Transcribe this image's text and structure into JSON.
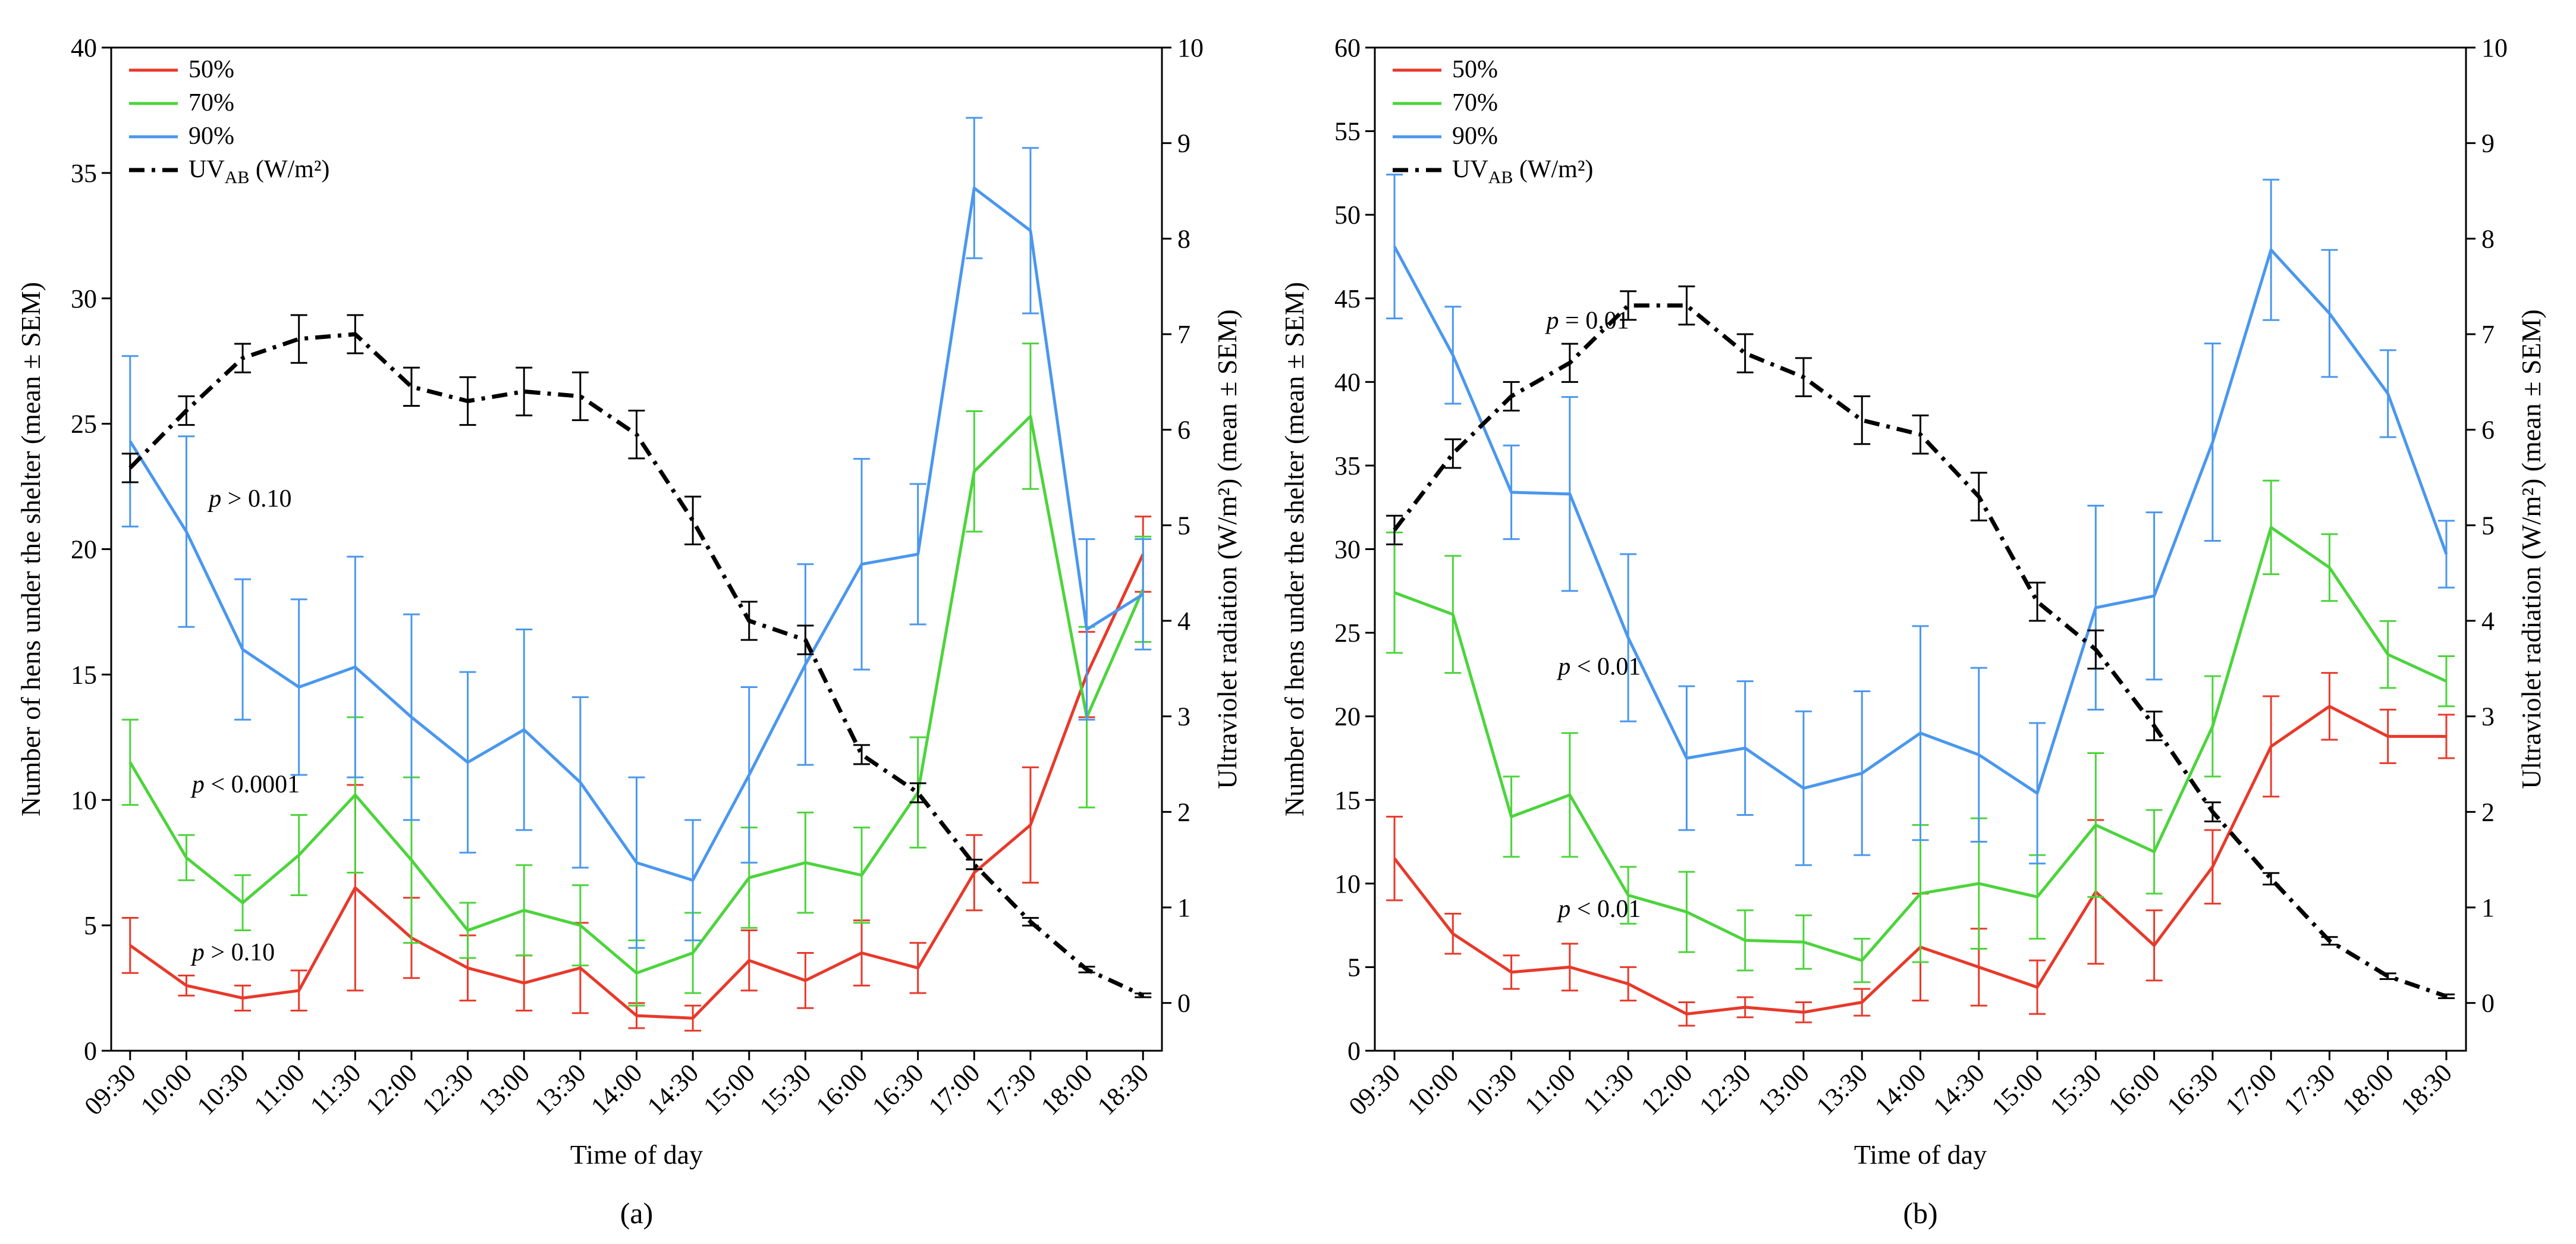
{
  "colors": {
    "s50": "#e8392a",
    "s70": "#4cd43c",
    "s90": "#4a97ee",
    "uv": "#000000"
  },
  "chart_data": [
    {
      "type": "line",
      "caption": "(a)",
      "xlabel": "Time of day",
      "ylabel": "Number of hens under the shelter (mean ± SEM)",
      "ylabel2": "Ultraviolet radiation (W/m²) (mean ± SEM)",
      "ylim": [
        0,
        40
      ],
      "yticks": [
        0,
        5,
        10,
        15,
        20,
        25,
        30,
        35,
        40
      ],
      "ylim2": [
        -0.5,
        10
      ],
      "yticks2": [
        0,
        1,
        2,
        3,
        4,
        5,
        6,
        7,
        8,
        9,
        10
      ],
      "categories": [
        "09:30",
        "10:00",
        "10:30",
        "11:00",
        "11:30",
        "12:00",
        "12:30",
        "13:00",
        "13:30",
        "14:00",
        "14:30",
        "15:00",
        "15:30",
        "16:00",
        "16:30",
        "17:00",
        "17:30",
        "18:00",
        "18:30"
      ],
      "legend": {
        "s50": "50%",
        "s70": "70%",
        "s90": "90%",
        "uv_main": "UV",
        "uv_sub": "AB",
        "uv_unit": " (W/m²)"
      },
      "annotations": [
        {
          "text": " > 0.10",
          "italic": "p",
          "x": 1.4,
          "y": 21.7
        },
        {
          "text": " < 0.0001",
          "italic": "p",
          "x": 1.1,
          "y": 10.3
        },
        {
          "text": " > 0.10",
          "italic": "p",
          "x": 1.1,
          "y": 3.6
        }
      ],
      "series": [
        {
          "name": "50%",
          "key": "s50",
          "values": [
            4.2,
            2.6,
            2.1,
            2.4,
            6.5,
            4.5,
            3.3,
            2.7,
            3.3,
            1.4,
            1.3,
            3.6,
            2.8,
            3.9,
            3.3,
            7.1,
            9.0,
            15.0,
            19.8
          ],
          "errors": [
            1.1,
            0.4,
            0.5,
            0.8,
            4.1,
            1.6,
            1.3,
            1.1,
            1.8,
            0.5,
            0.5,
            1.2,
            1.1,
            1.3,
            1.0,
            1.5,
            2.3,
            1.7,
            1.5
          ]
        },
        {
          "name": "70%",
          "key": "s70",
          "values": [
            11.5,
            7.7,
            5.9,
            7.8,
            10.2,
            7.6,
            4.8,
            5.6,
            5.0,
            3.1,
            3.9,
            6.9,
            7.5,
            7.0,
            10.3,
            23.1,
            25.3,
            13.3,
            18.4
          ],
          "errors": [
            1.7,
            0.9,
            1.1,
            1.6,
            3.1,
            3.3,
            1.1,
            1.8,
            1.6,
            1.3,
            1.6,
            2.0,
            2.0,
            1.9,
            2.2,
            2.4,
            2.9,
            3.6,
            2.1
          ]
        },
        {
          "name": "90%",
          "key": "s90",
          "values": [
            24.3,
            20.7,
            16.0,
            14.5,
            15.3,
            13.3,
            11.5,
            12.8,
            10.7,
            7.5,
            6.8,
            11.0,
            15.4,
            19.4,
            19.8,
            34.4,
            32.7,
            16.8,
            18.2
          ],
          "errors": [
            3.4,
            3.8,
            2.8,
            3.5,
            4.4,
            4.1,
            3.6,
            4.0,
            3.4,
            3.4,
            2.4,
            3.5,
            4.0,
            4.2,
            2.8,
            2.8,
            3.3,
            3.6,
            2.2
          ]
        },
        {
          "name": "UVAB (W/m²)",
          "key": "uv",
          "axis": "right",
          "values": [
            5.6,
            6.2,
            6.75,
            6.95,
            7.0,
            6.45,
            6.3,
            6.4,
            6.35,
            5.95,
            5.05,
            4.0,
            3.8,
            2.6,
            2.2,
            1.45,
            0.85,
            0.35,
            0.08
          ],
          "errors": [
            0.15,
            0.15,
            0.15,
            0.25,
            0.2,
            0.2,
            0.25,
            0.25,
            0.25,
            0.25,
            0.25,
            0.2,
            0.15,
            0.1,
            0.1,
            0.05,
            0.04,
            0.03,
            0.02
          ]
        }
      ]
    },
    {
      "type": "line",
      "caption": "(b)",
      "xlabel": "Time of day",
      "ylabel": "Number of hens under the shelter (mean ± SEM)",
      "ylabel2": "Ultraviolet radiation (W/m²) (mean ± SEM)",
      "ylim": [
        0,
        60
      ],
      "yticks": [
        0,
        5,
        10,
        15,
        20,
        25,
        30,
        35,
        40,
        45,
        50,
        55,
        60
      ],
      "ylim2": [
        -0.5,
        10
      ],
      "yticks2": [
        0,
        1,
        2,
        3,
        4,
        5,
        6,
        7,
        8,
        9,
        10
      ],
      "categories": [
        "09:30",
        "10:00",
        "10:30",
        "11:00",
        "11:30",
        "12:00",
        "12:30",
        "13:00",
        "13:30",
        "14:00",
        "14:30",
        "15:00",
        "15:30",
        "16:00",
        "16:30",
        "17:00",
        "17:30",
        "18:00",
        "18:30"
      ],
      "legend": {
        "s50": "50%",
        "s70": "70%",
        "s90": "90%",
        "uv_main": "UV",
        "uv_sub": "AB",
        "uv_unit": " (W/m²)"
      },
      "annotations": [
        {
          "text": " = 0.01",
          "italic": "p",
          "x": 2.6,
          "y": 43.2
        },
        {
          "text": " < 0.01",
          "italic": "p",
          "x": 2.8,
          "y": 22.5
        },
        {
          "text": " < 0.01",
          "italic": "p",
          "x": 2.8,
          "y": 8.0
        }
      ],
      "series": [
        {
          "name": "50%",
          "key": "s50",
          "values": [
            11.5,
            7.0,
            4.7,
            5.0,
            4.0,
            2.2,
            2.6,
            2.3,
            2.9,
            6.2,
            5.0,
            3.8,
            9.5,
            6.3,
            11.0,
            18.2,
            20.6,
            18.8,
            18.8
          ],
          "errors": [
            2.5,
            1.2,
            1.0,
            1.4,
            1.0,
            0.7,
            0.6,
            0.6,
            0.8,
            3.2,
            2.3,
            1.6,
            4.3,
            2.1,
            2.2,
            3.0,
            2.0,
            1.6,
            1.3
          ]
        },
        {
          "name": "70%",
          "key": "s70",
          "values": [
            27.4,
            26.1,
            14.0,
            15.3,
            9.3,
            8.3,
            6.6,
            6.5,
            5.4,
            9.4,
            10.0,
            9.2,
            13.5,
            11.9,
            19.4,
            31.3,
            28.9,
            23.7,
            22.1
          ],
          "errors": [
            3.6,
            3.5,
            2.4,
            3.7,
            1.7,
            2.4,
            1.8,
            1.6,
            1.3,
            4.1,
            3.9,
            2.5,
            4.3,
            2.5,
            3.0,
            2.8,
            2.0,
            2.0,
            1.5
          ]
        },
        {
          "name": "90%",
          "key": "s90",
          "values": [
            48.1,
            41.6,
            33.4,
            33.3,
            24.7,
            17.5,
            18.1,
            15.7,
            16.6,
            19.0,
            17.7,
            15.4,
            26.5,
            27.2,
            36.4,
            47.9,
            44.1,
            39.3,
            29.7
          ],
          "errors": [
            4.3,
            2.9,
            2.8,
            5.8,
            5.0,
            4.3,
            4.0,
            4.6,
            4.9,
            6.4,
            5.2,
            4.2,
            6.1,
            5.0,
            5.9,
            4.2,
            3.8,
            2.6,
            2.0
          ]
        },
        {
          "name": "UVAB (W/m²)",
          "key": "uv",
          "axis": "right",
          "values": [
            4.95,
            5.75,
            6.35,
            6.7,
            7.3,
            7.3,
            6.8,
            6.55,
            6.1,
            5.95,
            5.3,
            4.2,
            3.7,
            2.9,
            2.0,
            1.3,
            0.65,
            0.28,
            0.07
          ],
          "errors": [
            0.15,
            0.15,
            0.15,
            0.2,
            0.15,
            0.2,
            0.2,
            0.2,
            0.25,
            0.2,
            0.25,
            0.2,
            0.2,
            0.15,
            0.1,
            0.06,
            0.04,
            0.03,
            0.02
          ]
        }
      ]
    }
  ]
}
